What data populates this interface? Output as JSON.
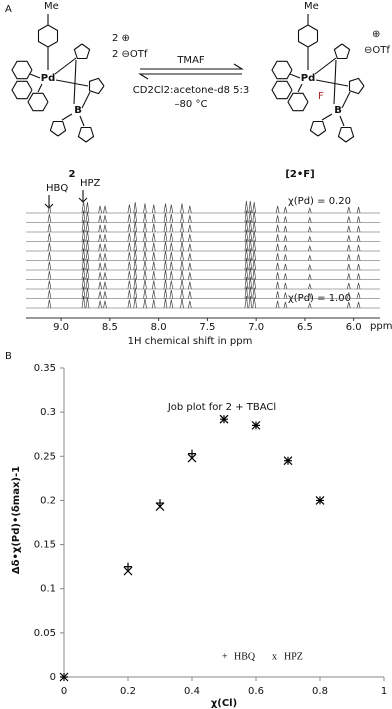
{
  "panel_a": {
    "label": "A",
    "reaction": {
      "reagent": "TMAF",
      "solvent": "CD2Cl2:acetone-d8 5:3",
      "temperature": "–80 °C"
    },
    "left": {
      "name": "2",
      "me": "Me",
      "pd": "Pd",
      "b": "B",
      "charge": "2 ⊕",
      "counterion": "2 ⊖OTf"
    },
    "right": {
      "name": "[2•F]",
      "me": "Me",
      "pd": "Pd",
      "b": "B",
      "f": "F",
      "charge": "⊕",
      "counterion": "⊖OTf"
    },
    "spectra": {
      "peak_labels": [
        "HBQ",
        "HPZ"
      ],
      "top_label": "χ(Pd) = 0.20",
      "bottom_label": "χ(Pd) = 1.00",
      "xlabel": "1H chemical shift in ppm",
      "unit": "ppm",
      "xlim": [
        9.36,
        5.73
      ],
      "xticks": [
        {
          "value": 9,
          "label": "9.0"
        },
        {
          "value": 8.5,
          "label": "8.5"
        },
        {
          "value": 8,
          "label": "8.0"
        },
        {
          "value": 7.5,
          "label": "7.5"
        },
        {
          "value": 7,
          "label": "7.0"
        },
        {
          "value": 6.5,
          "label": "6.5"
        },
        {
          "value": 6,
          "label": "6.0"
        }
      ],
      "peaks": [
        {
          "ppm": 9.12,
          "height": 0.7
        },
        {
          "ppm": 8.77,
          "height": 1
        },
        {
          "ppm": 8.73,
          "height": 0.9
        },
        {
          "ppm": 8.6,
          "height": 0.6
        },
        {
          "ppm": 8.55,
          "height": 0.6
        },
        {
          "ppm": 8.3,
          "height": 0.7
        },
        {
          "ppm": 8.24,
          "height": 0.9
        },
        {
          "ppm": 8.14,
          "height": 0.8
        },
        {
          "ppm": 8.05,
          "height": 0.7
        },
        {
          "ppm": 7.93,
          "height": 0.8
        },
        {
          "ppm": 7.87,
          "height": 0.7
        },
        {
          "ppm": 7.76,
          "height": 0.8
        },
        {
          "ppm": 7.68,
          "height": 0.6
        },
        {
          "ppm": 7.1,
          "height": 1
        },
        {
          "ppm": 7.06,
          "height": 1
        },
        {
          "ppm": 7.02,
          "height": 0.9
        },
        {
          "ppm": 6.78,
          "height": 0.6
        },
        {
          "ppm": 6.7,
          "height": 0.5
        },
        {
          "ppm": 6.45,
          "height": 0.4
        },
        {
          "ppm": 6.05,
          "height": 0.5
        },
        {
          "ppm": 5.95,
          "height": 0.5
        }
      ]
    }
  },
  "panel_b": {
    "label": "B"
  },
  "chart_data": {
    "type": "scatter",
    "title": "Job plot for 2 + TBACl",
    "xlabel": "χ(Cl)",
    "ylabel": "Δδ•χ(Pd)•(δmax)-1",
    "x": [
      0,
      0.2,
      0.3,
      0.4,
      0.5,
      0.6,
      0.7,
      0.8
    ],
    "series": [
      {
        "name": "HBQ",
        "marker": "+",
        "color": "#000000",
        "values": [
          0,
          0.125,
          0.197,
          0.253,
          0.292,
          0.285,
          0.245,
          0.2
        ]
      },
      {
        "name": "HPZ",
        "marker": "x",
        "color": "#000000",
        "values": [
          0,
          0.12,
          0.193,
          0.248,
          0.292,
          0.285,
          0.245,
          0.2
        ]
      }
    ],
    "xlim": [
      0,
      1
    ],
    "ylim": [
      0,
      0.35
    ],
    "xticks": [
      0,
      0.2,
      0.4,
      0.6,
      0.8,
      1
    ],
    "yticks": [
      0,
      0.05,
      0.1,
      0.15,
      0.2,
      0.25,
      0.3,
      0.35
    ],
    "grid": false
  }
}
